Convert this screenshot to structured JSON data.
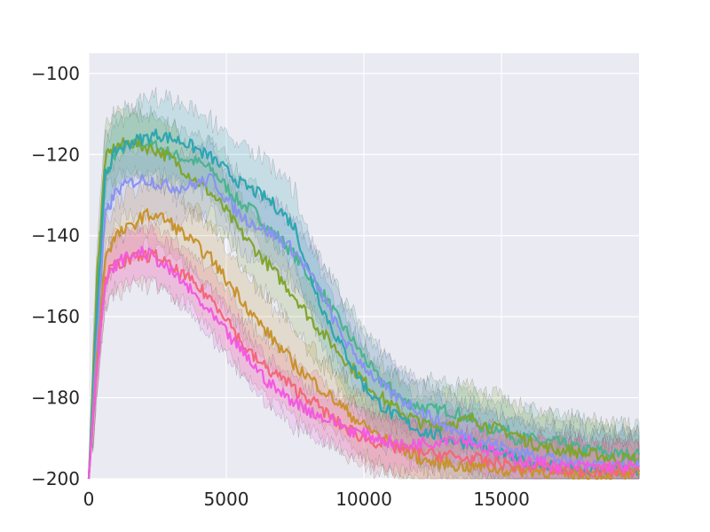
{
  "chart_data": {
    "type": "line",
    "title": "",
    "xlabel": "",
    "ylabel": "",
    "xlim": [
      0,
      20000
    ],
    "ylim": [
      -200,
      -95
    ],
    "x_ticks": [
      0,
      5000,
      10000,
      15000
    ],
    "x_tick_labels": [
      "0",
      "5000",
      "10000",
      "15000"
    ],
    "y_ticks": [
      -200,
      -180,
      -160,
      -140,
      -120,
      -100
    ],
    "y_tick_labels": [
      "−200",
      "−180",
      "−160",
      "−140",
      "−120",
      "−100"
    ],
    "grid": true,
    "legend": "none",
    "style": {
      "background": "#eaeaf2",
      "grid_color": "#ffffff",
      "band_opacity": 0.18
    },
    "series": [
      {
        "color": "#4cb391",
        "x": [
          0,
          300,
          600,
          1000,
          1500,
          2000,
          2500,
          3000,
          3500,
          4000,
          4500,
          5000,
          5500,
          6000,
          6500,
          7000,
          7500,
          8000,
          8500,
          9000,
          9500,
          10000,
          10500,
          11000,
          11500,
          12000,
          12500,
          13000,
          13500,
          14000,
          14500,
          15000,
          15500,
          16000,
          16500,
          17000,
          17500,
          18000,
          18500,
          19000,
          19500,
          20000
        ],
        "y": [
          -200,
          -160,
          -126,
          -119,
          -118,
          -117,
          -118,
          -120,
          -121,
          -122,
          -124,
          -128,
          -132,
          -134,
          -138,
          -141,
          -145,
          -150,
          -154,
          -160,
          -165,
          -170,
          -175,
          -178,
          -181,
          -182,
          -183,
          -183,
          -184,
          -186,
          -188,
          -187,
          -190,
          -190,
          -191,
          -191,
          -192,
          -193,
          -193,
          -194,
          -194,
          -194
        ],
        "band": 7
      },
      {
        "color": "#7fa52e",
        "x": [
          0,
          300,
          600,
          1000,
          1500,
          2000,
          2500,
          3000,
          3500,
          4000,
          4500,
          5000,
          5500,
          6000,
          6500,
          7000,
          7500,
          8000,
          8500,
          9000,
          9500,
          10000,
          10500,
          11000,
          11500,
          12000,
          12500,
          13000,
          13500,
          14000,
          14500,
          15000,
          15500,
          16000,
          16500,
          17000,
          17500,
          18000,
          18500,
          19000,
          19500,
          20000
        ],
        "y": [
          -200,
          -150,
          -121,
          -118,
          -117,
          -118,
          -119,
          -121,
          -124,
          -127,
          -130,
          -134,
          -139,
          -143,
          -147,
          -151,
          -155,
          -160,
          -164,
          -168,
          -172,
          -176,
          -179,
          -182,
          -184,
          -186,
          -187,
          -186,
          -186,
          -185,
          -187,
          -188,
          -189,
          -191,
          -192,
          -193,
          -193,
          -194,
          -194,
          -195,
          -195,
          -195
        ],
        "band": 8
      },
      {
        "color": "#2ea6b0",
        "x": [
          0,
          300,
          600,
          1000,
          1500,
          2000,
          2500,
          3000,
          3500,
          4000,
          4500,
          5000,
          5500,
          6000,
          6500,
          7000,
          7500,
          8000,
          8500,
          9000,
          9500,
          10000,
          10500,
          11000,
          11500,
          12000,
          12500,
          13000,
          13500,
          14000,
          14500,
          15000,
          15500,
          16000,
          16500,
          17000,
          17500,
          18000,
          18500,
          19000,
          19500,
          20000
        ],
        "y": [
          -200,
          -158,
          -125,
          -119,
          -117,
          -116,
          -115,
          -116,
          -117,
          -119,
          -121,
          -124,
          -127,
          -129,
          -131,
          -134,
          -138,
          -149,
          -158,
          -165,
          -171,
          -177,
          -181,
          -184,
          -186,
          -188,
          -189,
          -190,
          -191,
          -191,
          -193,
          -194,
          -195,
          -196,
          -196,
          -197,
          -197,
          -198,
          -198,
          -198,
          -198,
          -198
        ],
        "band": 9
      },
      {
        "color": "#8a93f0",
        "x": [
          0,
          300,
          600,
          1000,
          1500,
          2000,
          2500,
          3000,
          3500,
          4000,
          4500,
          5000,
          5500,
          6000,
          6500,
          7000,
          7500,
          8000,
          8500,
          9000,
          9500,
          10000,
          10500,
          11000,
          11500,
          12000,
          12500,
          13000,
          13500,
          14000,
          14500,
          15000,
          15500,
          16000,
          16500,
          17000,
          17500,
          18000,
          18500,
          19000,
          19500,
          20000
        ],
        "y": [
          -200,
          -165,
          -135,
          -129,
          -127,
          -126,
          -127,
          -128,
          -128,
          -127,
          -126,
          -131,
          -135,
          -137,
          -139,
          -141,
          -144,
          -149,
          -155,
          -162,
          -168,
          -172,
          -176,
          -179,
          -181,
          -183,
          -185,
          -187,
          -189,
          -190,
          -191,
          -192,
          -193,
          -194,
          -194,
          -195,
          -196,
          -196,
          -196,
          -197,
          -197,
          -197
        ],
        "band": 8
      },
      {
        "color": "#c8932e",
        "x": [
          0,
          300,
          600,
          1000,
          1500,
          2000,
          2500,
          3000,
          3500,
          4000,
          4500,
          5000,
          5500,
          6000,
          6500,
          7000,
          7500,
          8000,
          8500,
          9000,
          9500,
          10000,
          10500,
          11000,
          11500,
          12000,
          12500,
          13000,
          13500,
          14000,
          14500,
          15000,
          15500,
          16000,
          16500,
          17000,
          17500,
          18000,
          18500,
          19000,
          19500,
          20000
        ],
        "y": [
          -200,
          -170,
          -145,
          -140,
          -138,
          -135,
          -135,
          -137,
          -140,
          -143,
          -146,
          -151,
          -155,
          -160,
          -164,
          -168,
          -172,
          -175,
          -178,
          -181,
          -184,
          -187,
          -189,
          -191,
          -193,
          -195,
          -196,
          -196,
          -197,
          -197,
          -197,
          -198,
          -198,
          -198,
          -198,
          -199,
          -199,
          -199,
          -199,
          -199,
          -199,
          -199
        ],
        "band": 8
      },
      {
        "color": "#f36779",
        "x": [
          0,
          300,
          600,
          1000,
          1500,
          2000,
          2500,
          3000,
          3500,
          4000,
          4500,
          5000,
          5500,
          6000,
          6500,
          7000,
          7500,
          8000,
          8500,
          9000,
          9500,
          10000,
          10500,
          11000,
          11500,
          12000,
          12500,
          13000,
          13500,
          14000,
          14500,
          15000,
          15500,
          16000,
          16500,
          17000,
          17500,
          18000,
          18500,
          19000,
          19500,
          20000
        ],
        "y": [
          -200,
          -172,
          -150,
          -147,
          -146,
          -145,
          -145,
          -148,
          -150,
          -153,
          -156,
          -160,
          -166,
          -170,
          -173,
          -175,
          -178,
          -180,
          -183,
          -186,
          -188,
          -190,
          -191,
          -192,
          -193,
          -193,
          -194,
          -194,
          -195,
          -195,
          -196,
          -196,
          -197,
          -197,
          -197,
          -198,
          -198,
          -198,
          -198,
          -198,
          -198,
          -198
        ],
        "band": 7
      },
      {
        "color": "#f25ae0",
        "x": [
          0,
          300,
          600,
          1000,
          1500,
          2000,
          2500,
          3000,
          3500,
          4000,
          4500,
          5000,
          5500,
          6000,
          6500,
          7000,
          7500,
          8000,
          8500,
          9000,
          9500,
          10000,
          10500,
          11000,
          11500,
          12000,
          12500,
          13000,
          13500,
          14000,
          14500,
          15000,
          15500,
          16000,
          16500,
          17000,
          17500,
          18000,
          18500,
          19000,
          19500,
          20000
        ],
        "y": [
          -200,
          -172,
          -152,
          -147,
          -145,
          -144,
          -146,
          -149,
          -152,
          -156,
          -160,
          -164,
          -168,
          -172,
          -176,
          -179,
          -181,
          -183,
          -185,
          -186,
          -188,
          -189,
          -190,
          -191,
          -192,
          -191,
          -191,
          -190,
          -190,
          -191,
          -193,
          -194,
          -195,
          -196,
          -196,
          -197,
          -197,
          -197,
          -197,
          -197,
          -197,
          -197
        ],
        "band": 6
      }
    ]
  }
}
